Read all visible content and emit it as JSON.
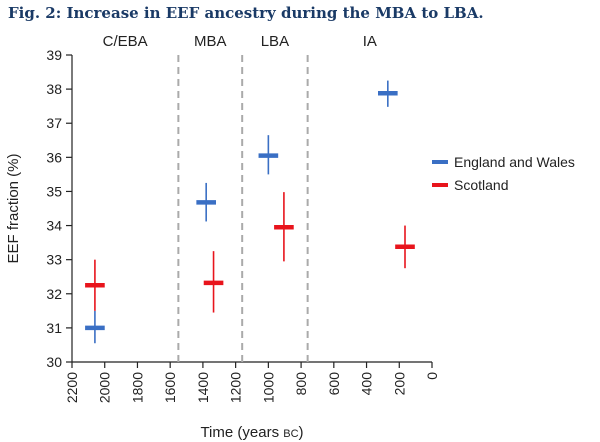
{
  "figure_title": "Fig. 2: Increase in EEF ancestry during the MBA to LBA.",
  "chart_data": {
    "type": "scatter",
    "title": "",
    "xlabel": "Time (years BC)",
    "xlabel_main": "Time (years ",
    "xlabel_unit": "BC",
    "xlabel_end": ")",
    "ylabel": "EEF fraction (%)",
    "xlim": [
      2200,
      0
    ],
    "ylim": [
      30,
      39
    ],
    "x_ticks": [
      2200,
      2000,
      1800,
      1600,
      1400,
      1200,
      1000,
      800,
      600,
      400,
      200,
      0
    ],
    "y_ticks": [
      30,
      31,
      32,
      33,
      34,
      35,
      36,
      37,
      38,
      39
    ],
    "period_boundaries": [
      1550,
      1160,
      760
    ],
    "periods": [
      {
        "label": "C/EBA",
        "start": 2200,
        "end": 1550
      },
      {
        "label": "MBA",
        "start": 1550,
        "end": 1160
      },
      {
        "label": "LBA",
        "start": 1160,
        "end": 760
      },
      {
        "label": "IA",
        "start": 760,
        "end": 0
      }
    ],
    "legend_position": "right",
    "series": [
      {
        "name": "England and Wales",
        "color": "#3a6fc4",
        "points": [
          {
            "x": 2060,
            "y": 31.0,
            "lo": 30.55,
            "hi": 31.5,
            "x_halfwidth": 60
          },
          {
            "x": 1380,
            "y": 34.68,
            "lo": 34.12,
            "hi": 35.25,
            "x_halfwidth": 60
          },
          {
            "x": 1000,
            "y": 36.05,
            "lo": 35.5,
            "hi": 36.65,
            "x_halfwidth": 60
          },
          {
            "x": 270,
            "y": 37.88,
            "lo": 37.48,
            "hi": 38.25,
            "x_halfwidth": 60
          }
        ]
      },
      {
        "name": "Scotland",
        "color": "#e8141c",
        "points": [
          {
            "x": 2060,
            "y": 32.25,
            "lo": 31.5,
            "hi": 33.0,
            "x_halfwidth": 60
          },
          {
            "x": 1335,
            "y": 32.32,
            "lo": 31.45,
            "hi": 33.25,
            "x_halfwidth": 60
          },
          {
            "x": 905,
            "y": 33.95,
            "lo": 32.95,
            "hi": 34.98,
            "x_halfwidth": 60
          },
          {
            "x": 165,
            "y": 33.38,
            "lo": 32.75,
            "hi": 34.0,
            "x_halfwidth": 60
          }
        ]
      }
    ]
  }
}
